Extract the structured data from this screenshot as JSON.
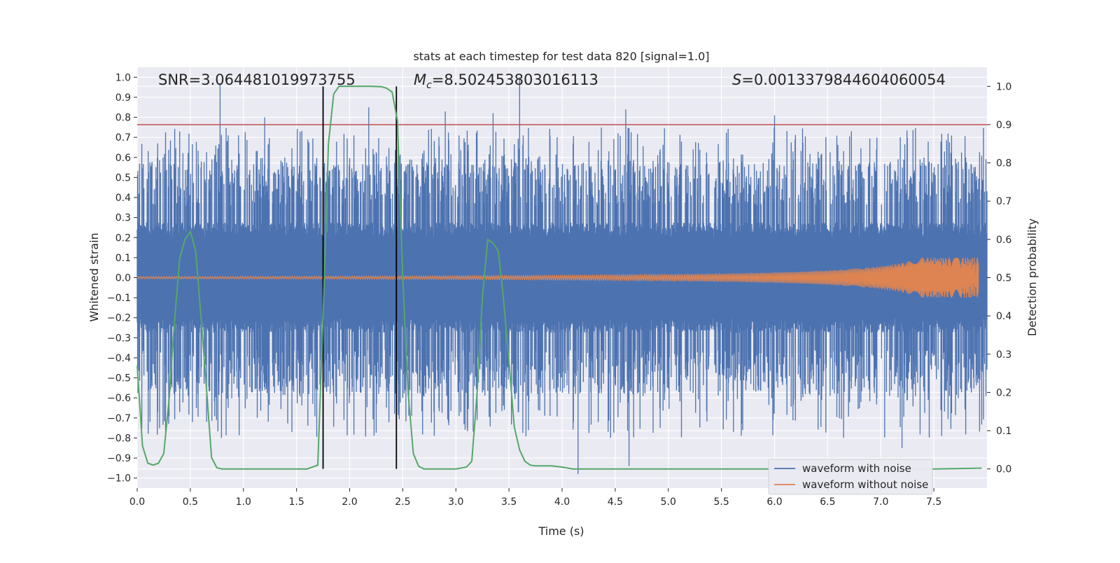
{
  "chart_data": {
    "type": "line",
    "title": "stats at each timestep for test data 820 [signal=1.0]",
    "xlabel": "Time (s)",
    "ylabel": "Whitened strain",
    "y2label": "Detection probability",
    "xlim": [
      0.0,
      8.0
    ],
    "ylim": [
      -1.05,
      1.05
    ],
    "y2lim": [
      -0.05,
      1.05
    ],
    "x_ticks": [
      0.0,
      0.5,
      1.0,
      1.5,
      2.0,
      2.5,
      3.0,
      3.5,
      4.0,
      4.5,
      5.0,
      5.5,
      6.0,
      6.5,
      7.0,
      7.5
    ],
    "x_tick_labels": [
      "0.0",
      "0.5",
      "1.0",
      "1.5",
      "2.0",
      "2.5",
      "3.0",
      "3.5",
      "4.0",
      "4.5",
      "5.0",
      "5.5",
      "6.0",
      "6.5",
      "7.0",
      "7.5"
    ],
    "y_ticks": [
      1.0,
      0.9,
      0.8,
      0.7,
      0.6,
      0.5,
      0.4,
      0.3,
      0.2,
      0.1,
      0.0,
      -0.1,
      -0.2,
      -0.3,
      -0.4,
      -0.5,
      -0.6,
      -0.7,
      -0.8,
      -0.9,
      -1.0
    ],
    "y_tick_labels": [
      "1.0",
      "0.9",
      "0.8",
      "0.7",
      "0.6",
      "0.5",
      "0.4",
      "0.3",
      "0.2",
      "0.1",
      "0.0",
      "−0.1",
      "−0.2",
      "−0.3",
      "−0.4",
      "−0.5",
      "−0.6",
      "−0.7",
      "−0.8",
      "−0.9",
      "−1.0"
    ],
    "y2_ticks": [
      1.0,
      0.9,
      0.8,
      0.7,
      0.6,
      0.5,
      0.4,
      0.3,
      0.2,
      0.1,
      0.0
    ],
    "y2_tick_labels": [
      "1.0",
      "0.9",
      "0.8",
      "0.7",
      "0.6",
      "0.5",
      "0.4",
      "0.3",
      "0.2",
      "0.1",
      "0.0"
    ],
    "grid": true,
    "annotations": {
      "snr": "SNR=3.064481019973755",
      "mc_symbol": "M",
      "mc_sub": "c",
      "mc_value": "=8.502453803016113",
      "s_symbol": "S",
      "s_value": "=0.0013379844604060054"
    },
    "vertical_lines_x": [
      1.75,
      2.44
    ],
    "threshold_y2": 0.9,
    "legend": {
      "position": "lower-right",
      "entries": [
        "waveform with noise",
        "waveform without noise"
      ]
    },
    "series": [
      {
        "name": "waveform with noise",
        "color": "#4c72b0",
        "band_core": [
          -0.25,
          0.25
        ],
        "band_typical": [
          -0.4,
          0.4
        ],
        "spike_times": [
          0.78,
          1.2,
          2.18,
          2.9,
          3.35,
          3.6,
          4.6,
          6.0,
          4.15,
          4.63,
          7.2,
          2.5
        ],
        "spike_values": [
          0.97,
          0.8,
          0.85,
          0.83,
          0.82,
          1.0,
          0.84,
          0.81,
          -0.98,
          -0.94,
          -0.85,
          -0.6
        ]
      },
      {
        "name": "waveform without noise",
        "color": "#dd8452",
        "description_amplitude_start": 0.005,
        "amplitude_end": 0.1,
        "merger_time": 8.0
      },
      {
        "name": "detection probability",
        "color": "#55a868",
        "axis": "right",
        "x": [
          0.0,
          0.05,
          0.1,
          0.15,
          0.2,
          0.25,
          0.3,
          0.35,
          0.4,
          0.45,
          0.5,
          0.55,
          0.6,
          0.65,
          0.7,
          0.75,
          0.8,
          1.0,
          1.4,
          1.6,
          1.65,
          1.7,
          1.75,
          1.8,
          1.85,
          1.9,
          2.0,
          2.2,
          2.3,
          2.35,
          2.4,
          2.45,
          2.5,
          2.55,
          2.6,
          2.65,
          2.7,
          3.0,
          3.1,
          3.15,
          3.2,
          3.25,
          3.3,
          3.35,
          3.4,
          3.45,
          3.5,
          3.55,
          3.6,
          3.65,
          3.7,
          3.75,
          3.8,
          3.9,
          4.0,
          4.1,
          5.0,
          6.0,
          7.0,
          7.5,
          7.95
        ],
        "y": [
          0.27,
          0.06,
          0.015,
          0.01,
          0.015,
          0.04,
          0.18,
          0.38,
          0.55,
          0.6,
          0.62,
          0.57,
          0.4,
          0.22,
          0.03,
          0.003,
          0.0,
          0.0,
          0.0,
          0.0,
          0.005,
          0.01,
          0.4,
          0.85,
          0.98,
          1.0,
          1.0,
          1.0,
          0.999,
          0.995,
          0.985,
          0.91,
          0.5,
          0.2,
          0.04,
          0.007,
          0.0,
          0.0,
          0.005,
          0.02,
          0.2,
          0.45,
          0.6,
          0.59,
          0.57,
          0.44,
          0.28,
          0.11,
          0.05,
          0.02,
          0.01,
          0.008,
          0.008,
          0.008,
          0.005,
          0.0,
          0.0,
          0.0,
          0.0,
          0.0,
          0.002
        ]
      }
    ],
    "colors": {
      "plot_bg": "#eaeaf2",
      "grid": "#ffffff",
      "threshold": "#c44e52",
      "vline": "#000000"
    }
  }
}
